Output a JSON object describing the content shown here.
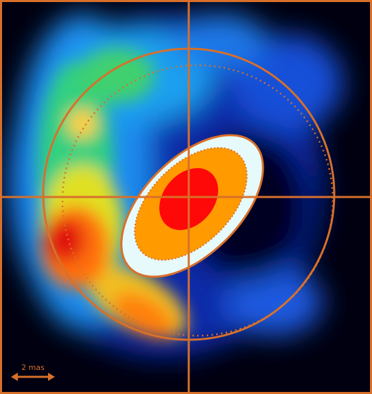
{
  "scale_bar": {
    "label": "2 mas"
  }
}
